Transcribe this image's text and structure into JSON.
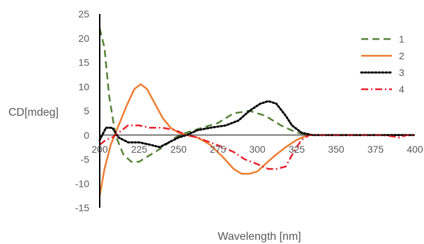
{
  "chart_data": {
    "type": "line",
    "title": "",
    "xlabel": "Wavelength [nm]",
    "ylabel": "CD[mdeg]",
    "xlim": [
      200,
      400
    ],
    "ylim": [
      -15,
      25
    ],
    "x_ticks": [
      "200",
      "225",
      "250",
      "275",
      "300",
      "325",
      "350",
      "375",
      "400"
    ],
    "y_ticks": [
      "25",
      "20",
      "15",
      "10",
      "5",
      "0",
      "-5",
      "-10",
      "-15"
    ],
    "grid": false,
    "legend_position": "right",
    "series": [
      {
        "name": "1",
        "color": "#548235",
        "dash": "long-dash",
        "points": [
          [
            200,
            22
          ],
          [
            203,
            18
          ],
          [
            206,
            8
          ],
          [
            210,
            0
          ],
          [
            215,
            -4
          ],
          [
            220,
            -5.5
          ],
          [
            225,
            -5.5
          ],
          [
            230,
            -4.5
          ],
          [
            240,
            -2.5
          ],
          [
            248,
            -0.5
          ],
          [
            255,
            0.5
          ],
          [
            265,
            1.5
          ],
          [
            275,
            2.5
          ],
          [
            285,
            4.5
          ],
          [
            295,
            5
          ],
          [
            305,
            4
          ],
          [
            315,
            2
          ],
          [
            325,
            0.5
          ],
          [
            335,
            0
          ],
          [
            350,
            0
          ],
          [
            375,
            0
          ],
          [
            400,
            0
          ]
        ]
      },
      {
        "name": "2",
        "color": "#ED7D31",
        "dash": "solid",
        "points": [
          [
            200,
            -12.5
          ],
          [
            203,
            -7
          ],
          [
            207,
            -2
          ],
          [
            212,
            2
          ],
          [
            217,
            6
          ],
          [
            222,
            9.5
          ],
          [
            226,
            10.5
          ],
          [
            230,
            9.5
          ],
          [
            235,
            6.5
          ],
          [
            240,
            3.5
          ],
          [
            245,
            1.5
          ],
          [
            250,
            0.5
          ],
          [
            255,
            0
          ],
          [
            262,
            -0.5
          ],
          [
            270,
            -2
          ],
          [
            278,
            -4.5
          ],
          [
            285,
            -7
          ],
          [
            290,
            -8
          ],
          [
            295,
            -8
          ],
          [
            300,
            -7.5
          ],
          [
            305,
            -6
          ],
          [
            312,
            -4
          ],
          [
            318,
            -2.5
          ],
          [
            325,
            -1
          ],
          [
            332,
            0
          ],
          [
            340,
            0
          ],
          [
            360,
            0
          ],
          [
            380,
            0
          ],
          [
            400,
            0
          ]
        ]
      },
      {
        "name": "3",
        "color": "#000000",
        "dash": "dotted",
        "points": [
          [
            200,
            -1
          ],
          [
            204,
            1.5
          ],
          [
            208,
            1.5
          ],
          [
            212,
            -0.5
          ],
          [
            218,
            -1.5
          ],
          [
            225,
            -1.5
          ],
          [
            232,
            -2
          ],
          [
            238,
            -2.5
          ],
          [
            244,
            -1.5
          ],
          [
            250,
            -0.5
          ],
          [
            255,
            0
          ],
          [
            262,
            1
          ],
          [
            270,
            1.5
          ],
          [
            280,
            2
          ],
          [
            288,
            3
          ],
          [
            295,
            5
          ],
          [
            302,
            6.5
          ],
          [
            307,
            7
          ],
          [
            312,
            6.5
          ],
          [
            318,
            4
          ],
          [
            322,
            2
          ],
          [
            328,
            0.5
          ],
          [
            335,
            0
          ],
          [
            350,
            0
          ],
          [
            375,
            0
          ],
          [
            400,
            0
          ]
        ]
      },
      {
        "name": "4",
        "color": "#E8222C",
        "dash": "dash-dot",
        "points": [
          [
            200,
            -2
          ],
          [
            204,
            -1
          ],
          [
            208,
            -0.5
          ],
          [
            212,
            0.5
          ],
          [
            218,
            2
          ],
          [
            225,
            2
          ],
          [
            232,
            1.5
          ],
          [
            240,
            1.5
          ],
          [
            248,
            1
          ],
          [
            255,
            0
          ],
          [
            262,
            -0.5
          ],
          [
            270,
            -1.5
          ],
          [
            278,
            -2.5
          ],
          [
            285,
            -3.5
          ],
          [
            292,
            -5
          ],
          [
            300,
            -6
          ],
          [
            307,
            -7
          ],
          [
            312,
            -7
          ],
          [
            318,
            -6.5
          ],
          [
            323,
            -3.5
          ],
          [
            328,
            -1
          ],
          [
            333,
            0
          ],
          [
            340,
            0
          ],
          [
            360,
            0
          ],
          [
            380,
            0
          ],
          [
            390,
            -0.5
          ],
          [
            395,
            0
          ],
          [
            400,
            0
          ]
        ]
      }
    ]
  }
}
